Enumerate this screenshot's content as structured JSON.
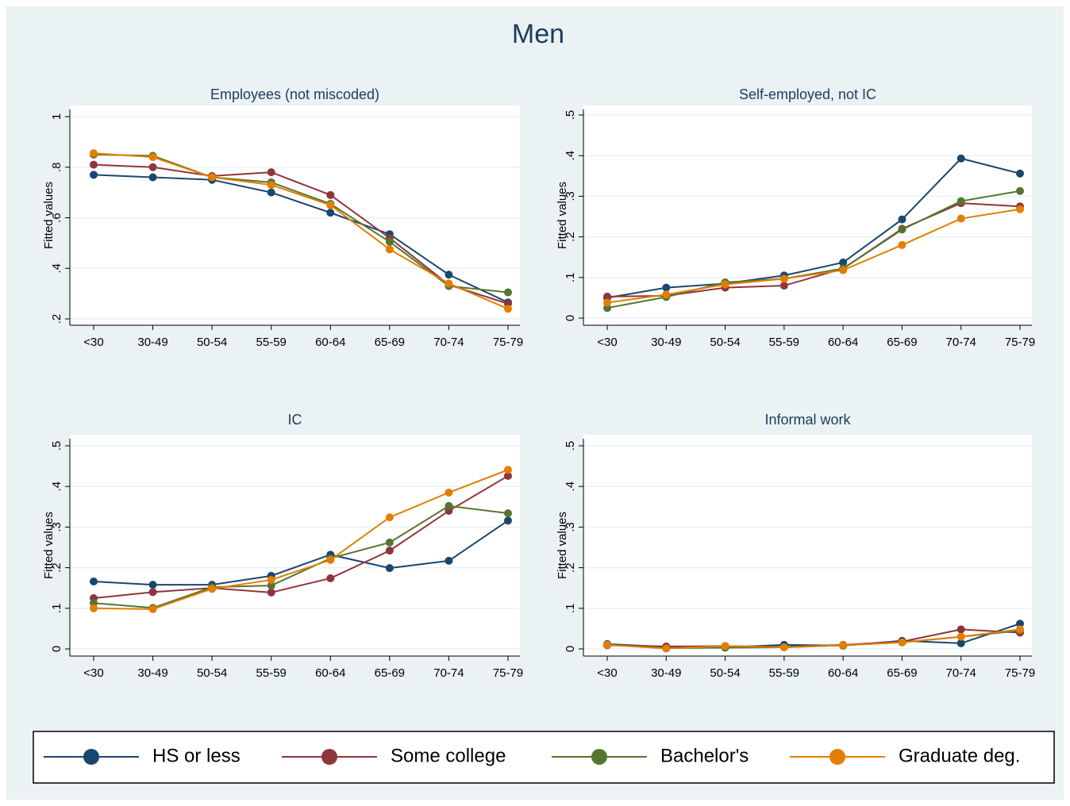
{
  "title": "Men",
  "chart_data": [
    {
      "type": "line",
      "title": "Employees (not miscoded)",
      "ylabel": "Fitted values",
      "categories": [
        "<30",
        "30-49",
        "50-54",
        "55-59",
        "60-64",
        "65-69",
        "70-74",
        "75-79"
      ],
      "ylim": [
        0.2,
        1
      ],
      "grid": true,
      "yticks": [
        {
          "value": 0.2,
          "label": ".2"
        },
        {
          "value": 0.4,
          "label": ".4"
        },
        {
          "value": 0.6,
          "label": ".6"
        },
        {
          "value": 0.8,
          "label": ".8"
        },
        1
      ],
      "series": [
        {
          "name": "HS or less",
          "color": "#1a476f",
          "values": [
            0.77,
            0.76,
            0.75,
            0.7,
            0.62,
            0.535,
            0.375,
            0.265
          ]
        },
        {
          "name": "Some college",
          "color": "#90353b",
          "values": [
            0.81,
            0.8,
            0.765,
            0.78,
            0.69,
            0.52,
            0.335,
            0.26
          ]
        },
        {
          "name": "Bachelor's",
          "color": "#55752f",
          "values": [
            0.85,
            0.845,
            0.76,
            0.74,
            0.655,
            0.505,
            0.33,
            0.305
          ]
        },
        {
          "name": "Graduate deg.",
          "color": "#e37e00",
          "values": [
            0.855,
            0.84,
            0.76,
            0.73,
            0.65,
            0.475,
            0.34,
            0.24
          ]
        }
      ]
    },
    {
      "type": "line",
      "title": "Self-employed, not IC",
      "ylabel": "Fitted values",
      "categories": [
        "<30",
        "30-49",
        "50-54",
        "55-59",
        "60-64",
        "65-69",
        "70-74",
        "75-79"
      ],
      "ylim": [
        0,
        0.5
      ],
      "grid": true,
      "yticks": [
        0,
        {
          "value": 0.1,
          "label": ".1"
        },
        {
          "value": 0.2,
          "label": ".2"
        },
        {
          "value": 0.3,
          "label": ".3"
        },
        {
          "value": 0.4,
          "label": ".4"
        },
        {
          "value": 0.5,
          "label": ".5"
        }
      ],
      "series": [
        {
          "name": "HS or less",
          "color": "#1a476f",
          "values": [
            0.05,
            0.075,
            0.085,
            0.105,
            0.137,
            0.243,
            0.393,
            0.356
          ]
        },
        {
          "name": "Some college",
          "color": "#90353b",
          "values": [
            0.053,
            0.055,
            0.075,
            0.08,
            0.122,
            0.22,
            0.283,
            0.275
          ]
        },
        {
          "name": "Bachelor's",
          "color": "#55752f",
          "values": [
            0.025,
            0.052,
            0.088,
            0.097,
            0.122,
            0.218,
            0.288,
            0.313
          ]
        },
        {
          "name": "Graduate deg.",
          "color": "#e37e00",
          "values": [
            0.038,
            0.058,
            0.083,
            0.097,
            0.118,
            0.18,
            0.245,
            0.268
          ]
        }
      ]
    },
    {
      "type": "line",
      "title": "IC",
      "ylabel": "Fitted values",
      "categories": [
        "<30",
        "30-49",
        "50-54",
        "55-59",
        "60-64",
        "65-69",
        "70-74",
        "75-79"
      ],
      "ylim": [
        0,
        0.5
      ],
      "grid": true,
      "yticks": [
        0,
        {
          "value": 0.1,
          "label": ".1"
        },
        {
          "value": 0.2,
          "label": ".2"
        },
        {
          "value": 0.3,
          "label": ".3"
        },
        {
          "value": 0.4,
          "label": ".4"
        },
        {
          "value": 0.5,
          "label": ".5"
        }
      ],
      "series": [
        {
          "name": "HS or less",
          "color": "#1a476f",
          "values": [
            0.166,
            0.158,
            0.158,
            0.18,
            0.232,
            0.199,
            0.217,
            0.316
          ]
        },
        {
          "name": "Some college",
          "color": "#90353b",
          "values": [
            0.125,
            0.14,
            0.15,
            0.139,
            0.174,
            0.242,
            0.34,
            0.426
          ]
        },
        {
          "name": "Bachelor's",
          "color": "#55752f",
          "values": [
            0.113,
            0.101,
            0.152,
            0.156,
            0.223,
            0.262,
            0.352,
            0.334
          ]
        },
        {
          "name": "Graduate deg.",
          "color": "#e37e00",
          "values": [
            0.1,
            0.098,
            0.148,
            0.17,
            0.219,
            0.324,
            0.385,
            0.441
          ]
        }
      ]
    },
    {
      "type": "line",
      "title": "Informal work",
      "ylabel": "Fitted values",
      "categories": [
        "<30",
        "30-49",
        "50-54",
        "55-59",
        "60-64",
        "65-69",
        "70-74",
        "75-79"
      ],
      "ylim": [
        0,
        0.5
      ],
      "grid": true,
      "yticks": [
        0,
        {
          "value": 0.1,
          "label": ".1"
        },
        {
          "value": 0.2,
          "label": ".2"
        },
        {
          "value": 0.3,
          "label": ".3"
        },
        {
          "value": 0.4,
          "label": ".4"
        },
        {
          "value": 0.5,
          "label": ".5"
        }
      ],
      "series": [
        {
          "name": "HS or less",
          "color": "#1a476f",
          "values": [
            0.012,
            0.005,
            0.004,
            0.01,
            0.008,
            0.02,
            0.014,
            0.062
          ]
        },
        {
          "name": "Some college",
          "color": "#90353b",
          "values": [
            0.009,
            0.006,
            0.007,
            0.005,
            0.01,
            0.018,
            0.048,
            0.04
          ]
        },
        {
          "name": "Bachelor's",
          "color": "#55752f",
          "values": [
            0.01,
            0.002,
            0.003,
            0.004,
            0.009,
            0.016,
            0.03,
            0.045
          ]
        },
        {
          "name": "Graduate deg.",
          "color": "#e37e00",
          "values": [
            0.01,
            0.001,
            0.007,
            0.004,
            0.009,
            0.016,
            0.03,
            0.048
          ]
        }
      ]
    }
  ]
}
